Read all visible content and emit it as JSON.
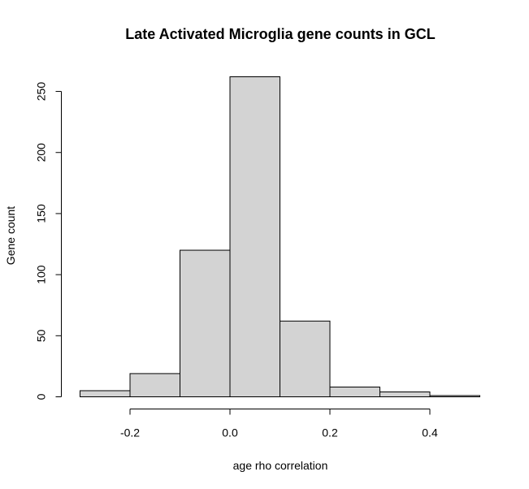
{
  "chart_data": {
    "type": "bar",
    "title": "Late Activated Microglia gene counts in GCL",
    "xlabel": "age rho correlation",
    "ylabel": "Gene count",
    "bins": [
      {
        "start": -0.3,
        "end": -0.2,
        "count": 5
      },
      {
        "start": -0.2,
        "end": -0.1,
        "count": 19
      },
      {
        "start": -0.1,
        "end": 0.0,
        "count": 120
      },
      {
        "start": 0.0,
        "end": 0.1,
        "count": 262
      },
      {
        "start": 0.1,
        "end": 0.2,
        "count": 62
      },
      {
        "start": 0.2,
        "end": 0.3,
        "count": 8
      },
      {
        "start": 0.3,
        "end": 0.4,
        "count": 4
      },
      {
        "start": 0.4,
        "end": 0.5,
        "count": 1
      }
    ],
    "x_ticks": [
      -0.2,
      0.0,
      0.2,
      0.4
    ],
    "x_tick_labels": [
      "-0.2",
      "0.0",
      "0.2",
      "0.4"
    ],
    "y_ticks": [
      0,
      50,
      100,
      150,
      200,
      250
    ],
    "y_tick_labels": [
      "0",
      "50",
      "100",
      "150",
      "200",
      "250"
    ],
    "xlim": [
      -0.3,
      0.5
    ],
    "ylim": [
      0,
      262
    ],
    "grid": false,
    "colors": {
      "bar_fill": "#d3d3d3",
      "bar_stroke": "#000000"
    }
  }
}
